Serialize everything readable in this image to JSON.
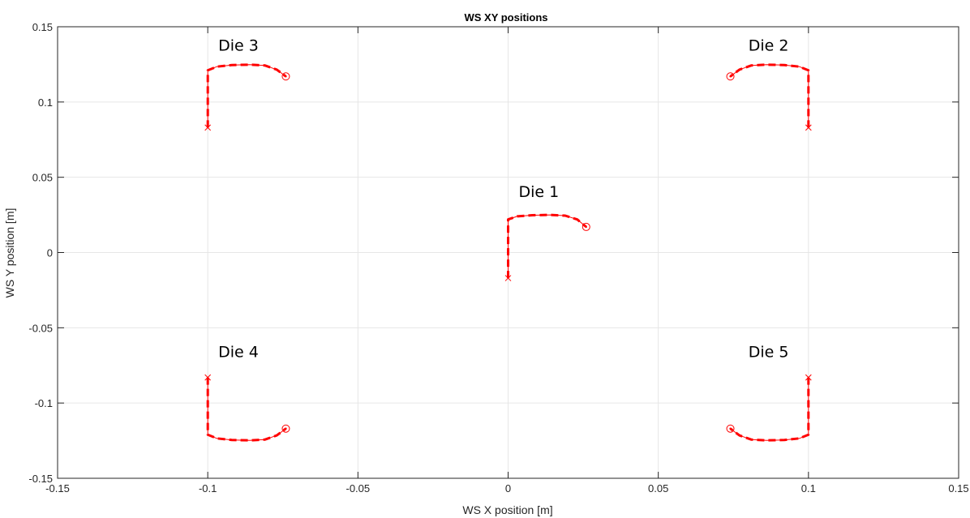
{
  "chart_data": {
    "type": "line",
    "title": "WS XY positions",
    "xlabel": "WS X position [m]",
    "ylabel": "WS Y position [m]",
    "xlim": [
      -0.15,
      0.15
    ],
    "ylim": [
      -0.15,
      0.15
    ],
    "xticks": [
      -0.15,
      -0.1,
      -0.05,
      0,
      0.05,
      0.1,
      0.15
    ],
    "xtick_labels": [
      "-0.15",
      "-0.1",
      "-0.05",
      "0",
      "0.05",
      "0.1",
      "0.15"
    ],
    "yticks": [
      -0.15,
      -0.1,
      -0.05,
      0,
      0.05,
      0.1,
      0.15
    ],
    "ytick_labels": [
      "-0.15",
      "-0.1",
      "-0.05",
      "0",
      "0.05",
      "0.1",
      "0.15"
    ],
    "grid": true,
    "line_color": "#ff0000",
    "series": [
      {
        "points": [
          [
            0.0,
            -0.017
          ],
          [
            0.0,
            0.0
          ],
          [
            0.0,
            0.015
          ],
          [
            0.0,
            0.022
          ],
          [
            0.003,
            0.024
          ],
          [
            0.008,
            0.0248
          ],
          [
            0.014,
            0.025
          ],
          [
            0.019,
            0.0245
          ],
          [
            0.023,
            0.022
          ],
          [
            0.026,
            0.017
          ]
        ],
        "start": [
          0.0,
          -0.017
        ],
        "end": [
          0.026,
          0.017
        ]
      },
      {
        "points": [
          [
            0.1,
            0.083
          ],
          [
            0.1,
            0.1
          ],
          [
            0.1,
            0.115
          ],
          [
            0.1,
            0.121
          ],
          [
            0.097,
            0.1235
          ],
          [
            0.092,
            0.1245
          ],
          [
            0.086,
            0.1248
          ],
          [
            0.081,
            0.1243
          ],
          [
            0.077,
            0.1215
          ],
          [
            0.074,
            0.117
          ]
        ],
        "start": [
          0.1,
          0.083
        ],
        "end": [
          0.074,
          0.117
        ]
      },
      {
        "points": [
          [
            -0.1,
            0.083
          ],
          [
            -0.1,
            0.1
          ],
          [
            -0.1,
            0.115
          ],
          [
            -0.1,
            0.121
          ],
          [
            -0.097,
            0.1235
          ],
          [
            -0.092,
            0.1245
          ],
          [
            -0.086,
            0.1248
          ],
          [
            -0.081,
            0.1243
          ],
          [
            -0.077,
            0.1215
          ],
          [
            -0.074,
            0.117
          ]
        ],
        "start": [
          -0.1,
          0.083
        ],
        "end": [
          -0.074,
          0.117
        ]
      },
      {
        "points": [
          [
            -0.1,
            -0.083
          ],
          [
            -0.1,
            -0.1
          ],
          [
            -0.1,
            -0.115
          ],
          [
            -0.1,
            -0.121
          ],
          [
            -0.097,
            -0.1235
          ],
          [
            -0.092,
            -0.1245
          ],
          [
            -0.086,
            -0.1248
          ],
          [
            -0.081,
            -0.1243
          ],
          [
            -0.077,
            -0.1215
          ],
          [
            -0.074,
            -0.117
          ]
        ],
        "start": [
          -0.1,
          -0.083
        ],
        "end": [
          -0.074,
          -0.117
        ]
      },
      {
        "points": [
          [
            0.1,
            -0.083
          ],
          [
            0.1,
            -0.1
          ],
          [
            0.1,
            -0.115
          ],
          [
            0.1,
            -0.121
          ],
          [
            0.097,
            -0.1235
          ],
          [
            0.092,
            -0.1245
          ],
          [
            0.086,
            -0.1248
          ],
          [
            0.081,
            -0.1243
          ],
          [
            0.077,
            -0.1215
          ],
          [
            0.074,
            -0.117
          ]
        ],
        "start": [
          0.1,
          -0.083
        ],
        "end": [
          0.074,
          -0.117
        ]
      }
    ],
    "annotations": [
      {
        "text": "Die 1",
        "x": 0.0035,
        "y": 0.037
      },
      {
        "text": "Die 2",
        "x": 0.08,
        "y": 0.134
      },
      {
        "text": "Die 3",
        "x": -0.0965,
        "y": 0.134
      },
      {
        "text": "Die 4",
        "x": -0.0965,
        "y": -0.0695
      },
      {
        "text": "Die 5",
        "x": 0.08,
        "y": -0.0695
      }
    ]
  }
}
